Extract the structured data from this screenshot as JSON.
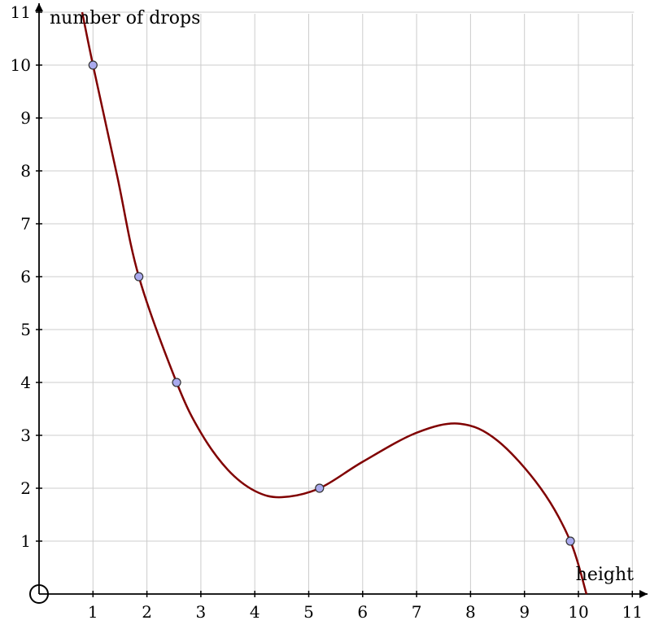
{
  "chart_data": {
    "type": "line",
    "xlabel": "height",
    "ylabel": "number of drops",
    "xlim": [
      0,
      11
    ],
    "ylim": [
      0,
      11
    ],
    "grid": true,
    "x_ticks": [
      "1",
      "2",
      "3",
      "4",
      "5",
      "6",
      "7",
      "8",
      "9",
      "10",
      "11"
    ],
    "y_ticks": [
      "1",
      "2",
      "3",
      "4",
      "5",
      "6",
      "7",
      "8",
      "9",
      "10",
      "11"
    ],
    "points": [
      {
        "x": 1.0,
        "y": 10
      },
      {
        "x": 1.85,
        "y": 6
      },
      {
        "x": 2.55,
        "y": 4
      },
      {
        "x": 5.2,
        "y": 2
      },
      {
        "x": 9.85,
        "y": 1
      }
    ],
    "curve": [
      {
        "x": 0.8,
        "y": 11
      },
      {
        "x": 1.0,
        "y": 10
      },
      {
        "x": 1.45,
        "y": 7.9
      },
      {
        "x": 1.85,
        "y": 6
      },
      {
        "x": 2.55,
        "y": 4
      },
      {
        "x": 3.0,
        "y": 3.05
      },
      {
        "x": 3.5,
        "y": 2.35
      },
      {
        "x": 4.0,
        "y": 1.95
      },
      {
        "x": 4.5,
        "y": 1.83
      },
      {
        "x": 5.2,
        "y": 2
      },
      {
        "x": 6.0,
        "y": 2.5
      },
      {
        "x": 7.0,
        "y": 3.05
      },
      {
        "x": 7.8,
        "y": 3.22
      },
      {
        "x": 8.5,
        "y": 2.9
      },
      {
        "x": 9.3,
        "y": 2.0
      },
      {
        "x": 9.85,
        "y": 1
      },
      {
        "x": 10.15,
        "y": 0
      }
    ],
    "colors": {
      "curve": "#800000",
      "point_fill": "#aaaaee",
      "point_stroke": "#333333",
      "grid": "#cccccc",
      "axis": "#000000"
    }
  }
}
